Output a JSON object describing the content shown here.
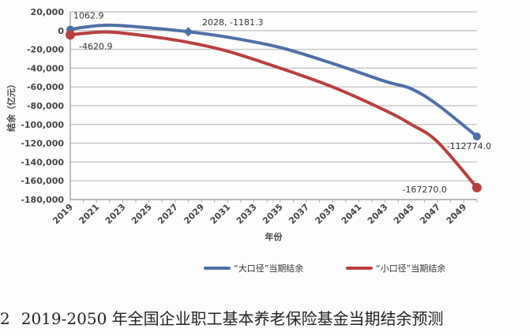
{
  "chart_data": {
    "type": "line",
    "xlabel": "年份",
    "ylabel": "结余（亿元）",
    "ylim": [
      -180000,
      20000
    ],
    "yticks": [
      20000,
      0,
      -20000,
      -40000,
      -60000,
      -80000,
      -100000,
      -120000,
      -140000,
      -160000,
      -180000
    ],
    "ytick_labels": [
      "20,000",
      "0",
      "-20,000",
      "-40,000",
      "-60,000",
      "-80,000",
      "-100,000",
      "-120,000",
      "-140,000",
      "-160,000",
      "-180,000"
    ],
    "xlim": [
      2019,
      2050
    ],
    "xtick_labels": [
      "2019",
      "2021",
      "2023",
      "2025",
      "2027",
      "2029",
      "2031",
      "2033",
      "2035",
      "2037",
      "2039",
      "2041",
      "2043",
      "2045",
      "2047",
      "2049"
    ],
    "grid": true,
    "legend_position": "bottom",
    "x": [
      2019,
      2020,
      2022,
      2025,
      2028,
      2031,
      2035,
      2039,
      2043,
      2045,
      2047,
      2050
    ],
    "series": [
      {
        "name": "“大口径”当期结余",
        "color": "#4f6fa8",
        "values": [
          1062.9,
          3500,
          5800,
          3000,
          -1181.3,
          -7000,
          -18000,
          -35000,
          -54000,
          -62000,
          -79000,
          -112774.0
        ]
      },
      {
        "name": "“小口径”当期结余",
        "color": "#b8403e",
        "values": [
          -4620.9,
          -3000,
          -1500,
          -6000,
          -12500,
          -22000,
          -40000,
          -60000,
          -85000,
          -100000,
          -118500,
          -167270.0
        ]
      }
    ],
    "annotations": [
      {
        "text": "1062.9",
        "series": 0,
        "x": 2019
      },
      {
        "text": "-4620.9",
        "series": 1,
        "x": 2019
      },
      {
        "text": "2028, -1181.3",
        "series": 0,
        "x": 2028
      },
      {
        "text": "-112774.0",
        "series": 0,
        "x": 2050
      },
      {
        "text": "-167270.0",
        "series": 1,
        "x": 2050
      }
    ]
  },
  "caption": {
    "number": "2",
    "text": "2019-2050 年全国企业职工基本养老保险基金当期结余预测"
  }
}
